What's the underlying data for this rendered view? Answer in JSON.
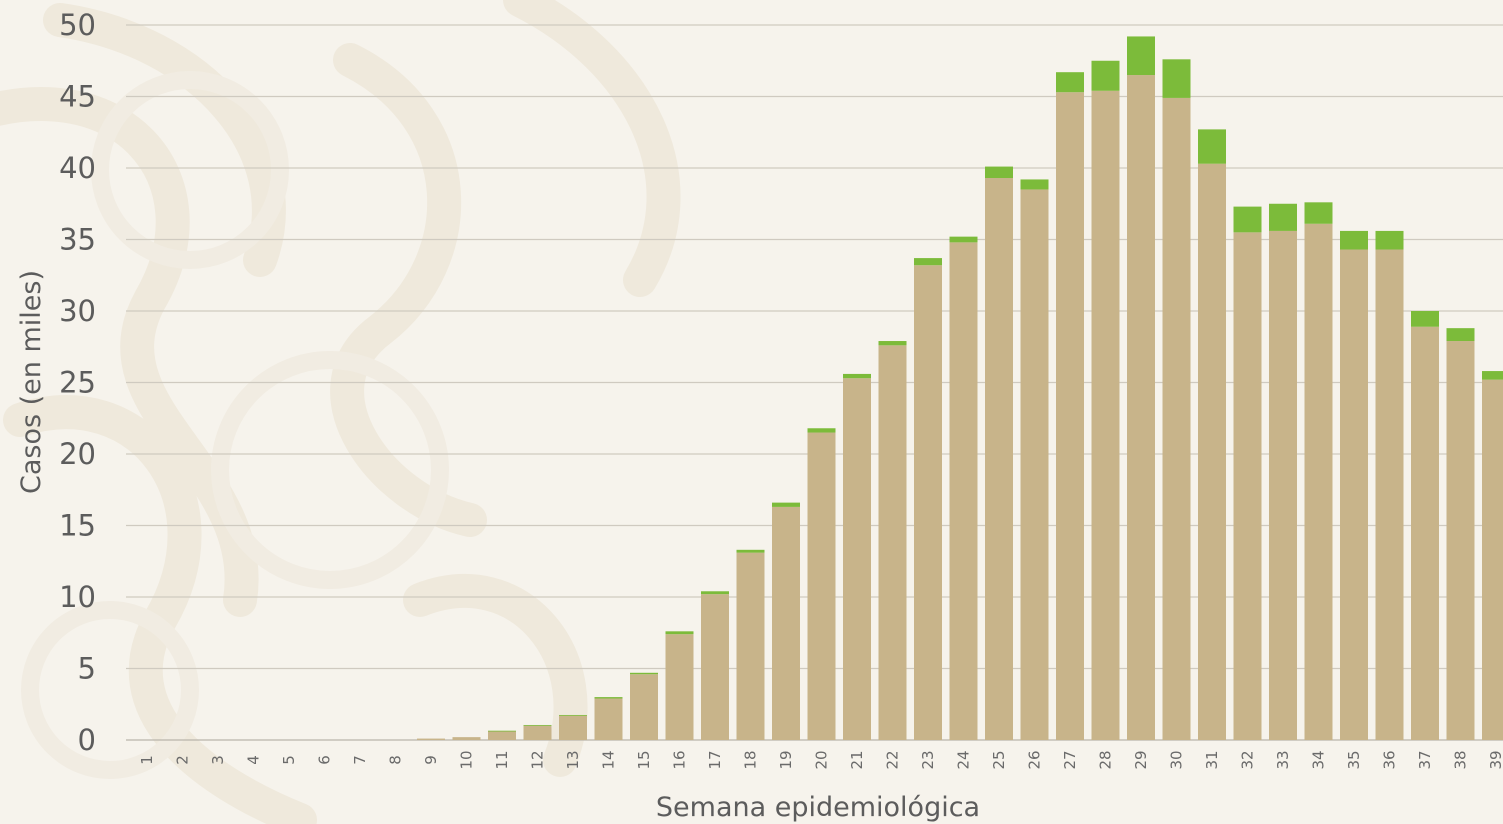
{
  "chart_data": {
    "type": "bar",
    "stacked": true,
    "xlabel": "Semana epidemiológica",
    "ylabel": "Casos (en miles)",
    "ylim": [
      0,
      50
    ],
    "yticks": [
      0,
      5,
      10,
      15,
      20,
      25,
      30,
      35,
      40,
      45,
      50
    ],
    "grid": true,
    "categories": [
      "1",
      "2",
      "3",
      "4",
      "5",
      "6",
      "7",
      "8",
      "9",
      "10",
      "11",
      "12",
      "13",
      "14",
      "15",
      "16",
      "17",
      "18",
      "19",
      "20",
      "21",
      "22",
      "23",
      "24",
      "25",
      "26",
      "27",
      "28",
      "29",
      "30",
      "31",
      "32",
      "33",
      "34",
      "35",
      "36",
      "37",
      "38",
      "39"
    ],
    "series": [
      {
        "color": "#c8b48a",
        "values": [
          0,
          0,
          0,
          0,
          0,
          0,
          0,
          0,
          0.1,
          0.2,
          0.6,
          1.0,
          1.7,
          2.9,
          4.6,
          7.4,
          10.2,
          13.1,
          16.3,
          21.5,
          25.3,
          27.6,
          33.2,
          34.8,
          39.3,
          38.5,
          45.3,
          45.4,
          46.5,
          44.9,
          40.3,
          35.5,
          35.6,
          36.1,
          34.3,
          34.3,
          28.9,
          27.9,
          25.2
        ]
      },
      {
        "color": "#7cbb3a",
        "values": [
          0,
          0,
          0,
          0,
          0,
          0,
          0,
          0,
          0,
          0,
          0.05,
          0.05,
          0.05,
          0.1,
          0.1,
          0.2,
          0.2,
          0.2,
          0.3,
          0.3,
          0.3,
          0.3,
          0.5,
          0.4,
          0.8,
          0.7,
          1.4,
          2.1,
          2.7,
          2.7,
          2.4,
          1.8,
          1.9,
          1.5,
          1.3,
          1.3,
          1.1,
          0.9,
          0.6
        ]
      }
    ]
  }
}
